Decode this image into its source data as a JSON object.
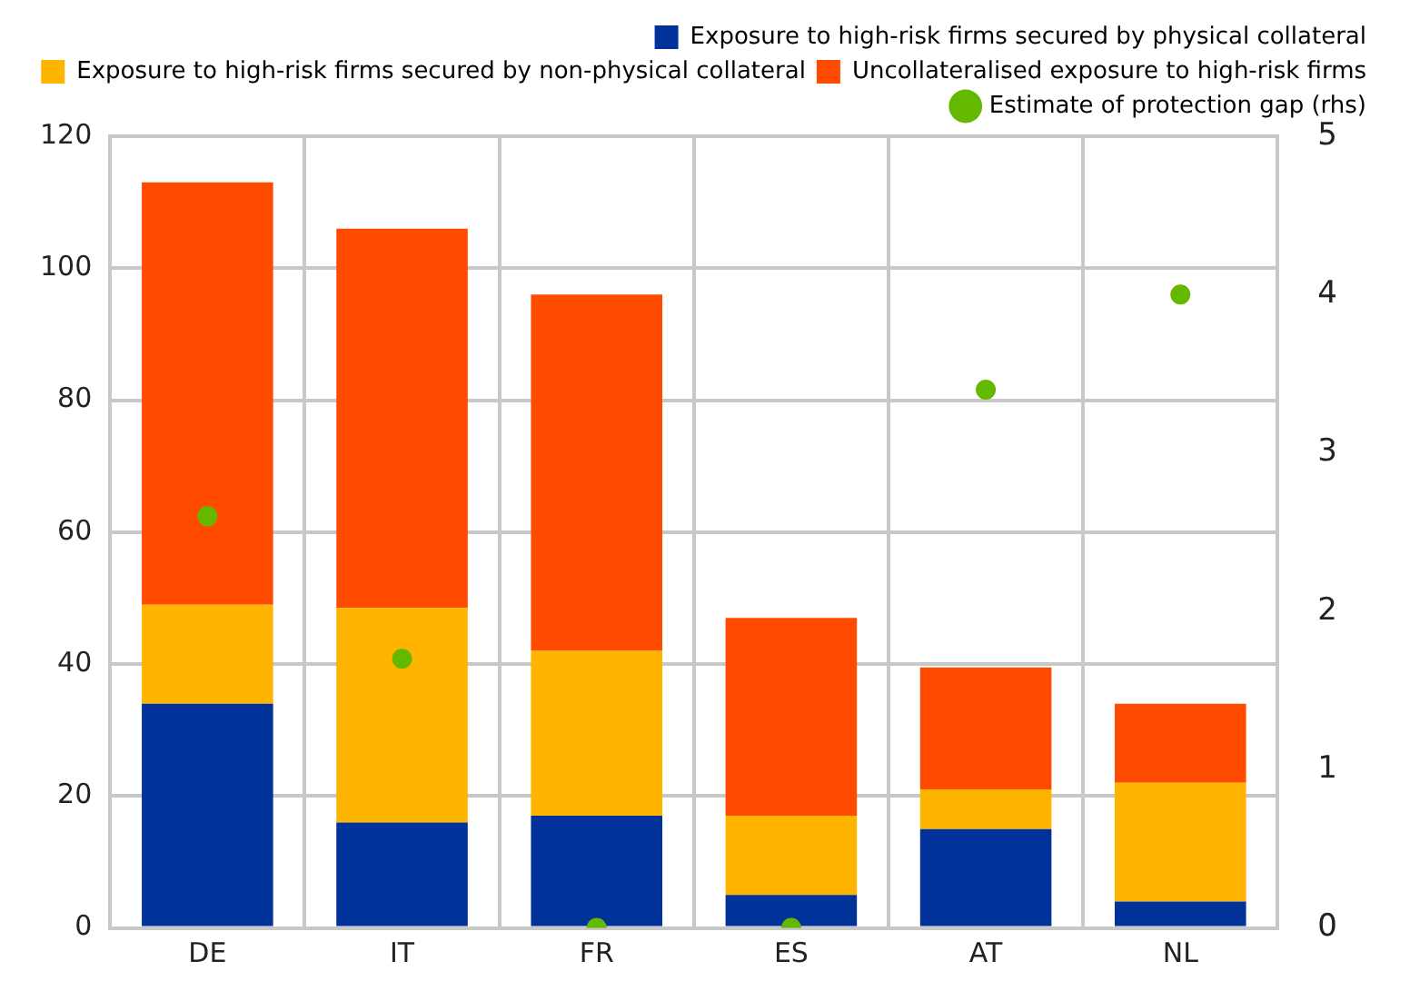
{
  "chart_data": {
    "type": "bar",
    "stacked": true,
    "categories": [
      "DE",
      "IT",
      "FR",
      "ES",
      "AT",
      "NL"
    ],
    "series": [
      {
        "name": "Exposure to high-risk firms secured by physical collateral",
        "color": "#003299",
        "values": [
          34,
          16,
          17,
          5,
          15,
          4
        ]
      },
      {
        "name": "Exposure to high-risk firms secured by non-physical collateral",
        "color": "#ffb400",
        "values": [
          15,
          32.5,
          25,
          12,
          6,
          18
        ]
      },
      {
        "name": "Uncollateralised exposure to high-risk firms",
        "color": "#ff4b00",
        "values": [
          64,
          57.5,
          54,
          30,
          18.5,
          12
        ]
      },
      {
        "name": "Estimate of protection gap (rhs)",
        "type": "scatter",
        "axis": "y2",
        "marker": "circle",
        "color": "#65b800",
        "values": [
          2.6,
          1.7,
          0,
          0,
          3.4,
          4
        ]
      }
    ],
    "ylim": [
      0,
      120
    ],
    "yticks": [
      0,
      20,
      40,
      60,
      80,
      100,
      120
    ],
    "y2lim": [
      0,
      5
    ],
    "y2ticks": [
      0,
      1,
      2,
      3,
      4,
      5
    ],
    "grid": true,
    "legend": "top"
  }
}
